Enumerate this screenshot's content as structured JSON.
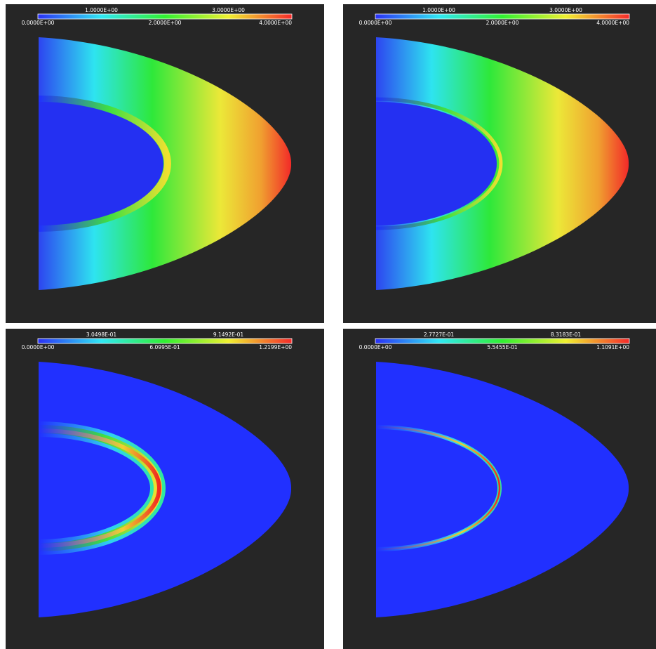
{
  "panels": [
    {
      "colorbar": {
        "top_labels": [
          "1.0000E+00",
          "3.0000E+00"
        ],
        "bottom_labels": [
          "0.0000E+00",
          "2.0000E+00",
          "4.0000E+00"
        ]
      }
    },
    {
      "colorbar": {
        "top_labels": [
          "1.0000E+00",
          "3.0000E+00"
        ],
        "bottom_labels": [
          "0.0000E+00",
          "2.0000E+00",
          "4.0000E+00"
        ]
      }
    },
    {
      "colorbar": {
        "top_labels": [
          "3.0498E-01",
          "9.1492E-01"
        ],
        "bottom_labels": [
          "0.0000E+00",
          "6.0995E-01",
          "1.2199E+00"
        ]
      }
    },
    {
      "colorbar": {
        "top_labels": [
          "2.7727E-01",
          "8.3183E-01"
        ],
        "bottom_labels": [
          "0.0000E+00",
          "5.5455E-01",
          "1.1091E+00"
        ]
      }
    }
  ]
}
